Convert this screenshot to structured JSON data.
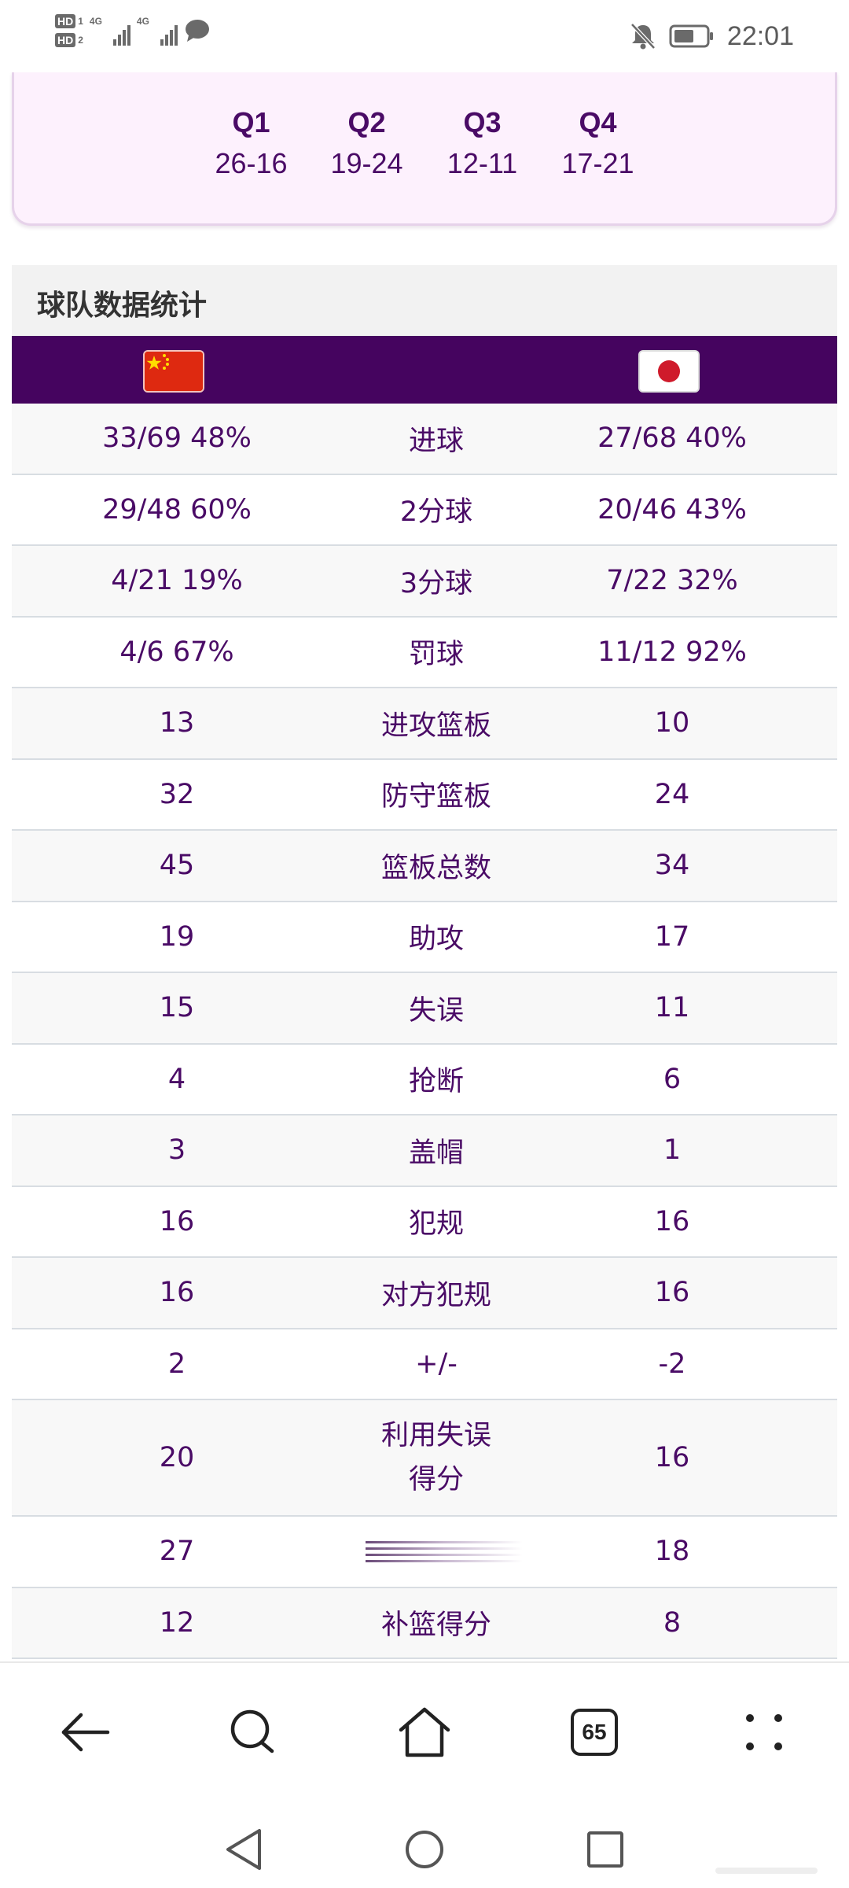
{
  "status_bar": {
    "sim1": "HD",
    "sim1_index": "1",
    "sim2": "HD",
    "sim2_index": "2",
    "network1": "4G",
    "network2": "4G",
    "time": "22:01",
    "icons": [
      "signal-icon",
      "message-icon",
      "mute-icon",
      "battery-icon"
    ]
  },
  "quarters": [
    {
      "label": "Q1",
      "score": "26-16"
    },
    {
      "label": "Q2",
      "score": "19-24"
    },
    {
      "label": "Q3",
      "score": "12-11"
    },
    {
      "label": "Q4",
      "score": "17-21"
    }
  ],
  "team_stats": {
    "title": "球队数据统计",
    "team_left_flag": "china-flag",
    "team_right_flag": "japan-flag",
    "rows": [
      {
        "left": "33/69 48%",
        "label": "进球",
        "right": "27/68 40%"
      },
      {
        "left": "29/48 60%",
        "label": "2分球",
        "right": "20/46 43%"
      },
      {
        "left": "4/21 19%",
        "label": "3分球",
        "right": "7/22 32%"
      },
      {
        "left": "4/6 67%",
        "label": "罚球",
        "right": "11/12 92%"
      },
      {
        "left": "13",
        "label": "进攻篮板",
        "right": "10"
      },
      {
        "left": "32",
        "label": "防守篮板",
        "right": "24"
      },
      {
        "left": "45",
        "label": "篮板总数",
        "right": "34"
      },
      {
        "left": "19",
        "label": "助攻",
        "right": "17"
      },
      {
        "left": "15",
        "label": "失误",
        "right": "11"
      },
      {
        "left": "4",
        "label": "抢断",
        "right": "6"
      },
      {
        "left": "3",
        "label": "盖帽",
        "right": "1"
      },
      {
        "left": "16",
        "label": "犯规",
        "right": "16"
      },
      {
        "left": "16",
        "label": "对方犯规",
        "right": "16"
      },
      {
        "left": "2",
        "label": "+/-",
        "right": "-2"
      },
      {
        "left": "20",
        "label_line1": "利用失误",
        "label_line2": "得分",
        "right": "16"
      },
      {
        "left": "27",
        "label": "",
        "right": "18"
      },
      {
        "left": "12",
        "label": "补篮得分",
        "right": "8"
      }
    ]
  },
  "browser_toolbar": {
    "tab_count": "65",
    "icons": [
      "back-icon",
      "search-icon",
      "home-icon",
      "tabs-icon",
      "more-icon"
    ]
  },
  "navigation": {
    "icons": [
      "nav-back-icon",
      "nav-home-icon",
      "nav-recents-icon"
    ]
  },
  "colors": {
    "accent": "#45045f",
    "text": "#4a0b66",
    "card_bg": "#fdf1fd",
    "header_bg": "#f2f2f2"
  }
}
